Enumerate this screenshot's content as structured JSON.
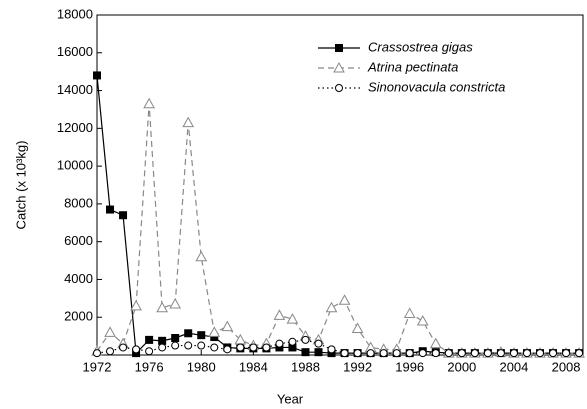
{
  "chart_data": {
    "type": "line",
    "x_label": "Year",
    "y_label": "Catch (x 10³kg)",
    "x": [
      1972,
      1973,
      1974,
      1975,
      1976,
      1977,
      1978,
      1979,
      1980,
      1981,
      1982,
      1983,
      1984,
      1985,
      1986,
      1987,
      1988,
      1989,
      1990,
      1991,
      1992,
      1993,
      1994,
      1995,
      1996,
      1997,
      1998,
      1999,
      2000,
      2001,
      2002,
      2003,
      2004,
      2005,
      2006,
      2007,
      2008,
      2009
    ],
    "series": [
      {
        "name": "Crassostrea gigas",
        "color": "#000000",
        "line_style": "solid",
        "marker": "square",
        "marker_fill": "#000000",
        "values": [
          14800,
          7700,
          7400,
          100,
          800,
          750,
          900,
          1150,
          1050,
          950,
          400,
          350,
          350,
          350,
          400,
          400,
          150,
          150,
          100,
          100,
          100,
          100,
          100,
          100,
          100,
          200,
          150,
          100,
          100,
          100,
          100,
          100,
          100,
          100,
          100,
          100,
          100,
          100
        ]
      },
      {
        "name": "Atrina pectinata",
        "color": "#888888",
        "line_style": "dashed",
        "marker": "triangle",
        "marker_fill": "#ffffff",
        "values": [
          200,
          1200,
          600,
          2600,
          13300,
          2500,
          2700,
          12300,
          5200,
          1200,
          1500,
          800,
          500,
          600,
          2100,
          1900,
          1000,
          800,
          2500,
          2900,
          1400,
          400,
          300,
          300,
          2200,
          1800,
          600,
          100,
          100,
          100,
          100,
          150,
          100,
          100,
          100,
          100,
          100,
          100
        ]
      },
      {
        "name": "Sinonovacula constricta",
        "color": "#000000",
        "line_style": "dotted",
        "marker": "circle",
        "marker_fill": "#ffffff",
        "values": [
          100,
          200,
          400,
          300,
          200,
          400,
          500,
          500,
          500,
          400,
          300,
          400,
          400,
          400,
          600,
          700,
          800,
          600,
          300,
          100,
          100,
          100,
          100,
          100,
          100,
          100,
          100,
          100,
          100,
          100,
          100,
          100,
          100,
          100,
          100,
          100,
          100,
          100
        ]
      }
    ],
    "xlim": [
      1972,
      2009.3
    ],
    "xticks": [
      1972,
      1976,
      1980,
      1984,
      1988,
      1992,
      1996,
      2000,
      2004,
      2008
    ],
    "ylim": [
      0,
      18000
    ],
    "yticks": [
      2000,
      4000,
      6000,
      8000,
      10000,
      12000,
      14000,
      16000,
      18000
    ],
    "legend": "upper right"
  }
}
